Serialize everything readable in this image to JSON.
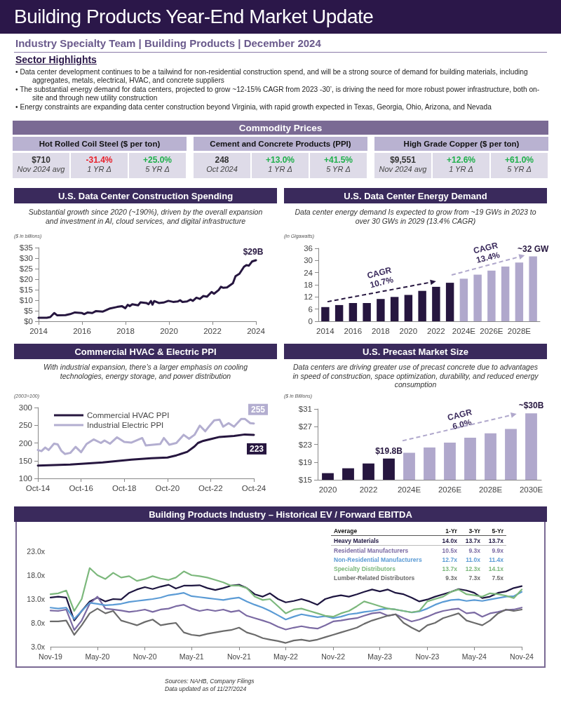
{
  "chart_data": [
    {
      "type": "other",
      "title": "Building Products Year-End Market Update",
      "subtitle": "Industry Specialty Team | Building Products | December 2024",
      "annotations": [
        "Sector Highlights",
        "• Data center development continues to be a tailwind for non-residential construction spend, and will be a strong source of demand for building materials, including aggregates, metals, electrical, HVAC, and concrete suppliers",
        "• The substantial energy demand for data centers, projected to grow ~12-15% CAGR from 2023 -30’, is driving the need for more robust power infrastructure, both on-site and through new utility construction",
        "• Energy constraints are expanding data center construction beyond Virginia, with rapid growth expected in Texas, Georgia, Ohio, Arizona, and Nevada"
      ]
    },
    {
      "type": "other",
      "title": "Commodity Prices",
      "annotations": [
        "Hot Rolled Coil Steel ($ per ton)",
        "$710",
        "Nov 2024 avg",
        "-31.4%",
        "1 YR Δ",
        "+25.0%",
        "5 YR Δ",
        "Cement and Concrete Products (PPI)",
        "248",
        "Oct 2024",
        "+13.0%",
        "1 YR Δ",
        "+41.5%",
        "5 YR Δ",
        "High Grade Copper ($ per ton)",
        "$9,551",
        "Nov 2024 avg",
        "+12.6%",
        "1 YR Δ",
        "+61.0%",
        "5 YR Δ"
      ],
      "colors": [
        "#333333",
        "#e8202a",
        "#1fb04b",
        "#333333",
        "#1fb04b",
        "#1fb04b",
        "#333333",
        "#1fb04b",
        "#1fb04b"
      ]
    },
    {
      "type": "line",
      "title": "U.S. Data Center Construction Spending",
      "subtitle": "Substantial growth since 2020 (~190%), driven by the overall expansion and investment in AI, cloud services, and digital infrastructure",
      "ylabel": "($ in billions)",
      "color": "#26163f",
      "marker": "none",
      "grid": false,
      "x": [
        2014,
        2014.38,
        2014.54,
        2014.72,
        2014.86,
        2015.24,
        2015.45,
        2015.67,
        2016,
        2016.1,
        2016.26,
        2016.47,
        2016.63,
        2016.96,
        2017.29,
        2017.61,
        2017.83,
        2017.99,
        2018.1,
        2018.2,
        2018.31,
        2018.58,
        2018.69,
        2018.96,
        2019.06,
        2019.17,
        2019.24,
        2019.32,
        2019.53,
        2019.75,
        2019.97,
        2020.19,
        2020.4,
        2020.51,
        2020.62,
        2020.83,
        2020.99,
        2021.1,
        2021.26,
        2021.42,
        2021.58,
        2021.75,
        2021.96,
        2022.07,
        2022.28,
        2022.39,
        2022.5,
        2022.67,
        2022.94,
        2023.06,
        2023.24,
        2023.45,
        2023.56,
        2023.67,
        2023.82,
        2024
      ],
      "values": [
        1.7,
        1.7,
        2,
        3.9,
        2.8,
        2.9,
        3.4,
        4.2,
        3.9,
        3.4,
        4.2,
        3.9,
        4.8,
        4.6,
        6.1,
        6.8,
        7.2,
        6.2,
        7.8,
        7.2,
        8.1,
        7.6,
        9,
        8.7,
        8.1,
        9.6,
        7.9,
        9.6,
        8.7,
        8.9,
        9.7,
        9.2,
        9.4,
        10,
        9.2,
        9.4,
        10.3,
        9.7,
        11.2,
        10.6,
        12,
        11.7,
        13.9,
        13.1,
        14.8,
        16.4,
        15.9,
        16.1,
        18.1,
        21.4,
        22.6,
        25.9,
        26.7,
        26.4,
        28.4,
        29
      ],
      "xlim": [
        2014,
        2024
      ],
      "xticks": [
        2014,
        2016,
        2018,
        2020,
        2022,
        2024
      ],
      "ylim": [
        0,
        35
      ],
      "yticks": [
        {
          "value": 0,
          "label": "$0"
        },
        {
          "value": 5,
          "label": "$5"
        },
        {
          "value": 10,
          "label": "$10"
        },
        {
          "value": 15,
          "label": "$15"
        },
        {
          "value": 20,
          "label": "$20"
        },
        {
          "value": 25,
          "label": "$25"
        },
        {
          "value": 30,
          "label": "$30"
        },
        {
          "value": 35,
          "label": "$35"
        }
      ],
      "annotations": [
        {
          "text": "$29B",
          "x": 2024,
          "y": 29
        }
      ]
    },
    {
      "type": "bar",
      "title": "U.S. Data Center Energy Demand",
      "subtitle": "Data center energy demand Is expected to grow from ~19 GWs in 2023 to over 30 GWs in 2029 (13.4% CAGR)",
      "ylabel": "(in Gigawatts)",
      "grid": false,
      "categories": [
        "2014",
        null,
        "2016",
        null,
        "2018",
        null,
        "2020",
        null,
        "2022",
        null,
        "2024E",
        null,
        "2026E",
        null,
        "2028E",
        null
      ],
      "values": [
        7,
        8,
        9,
        9,
        11,
        12,
        13,
        15,
        17,
        19,
        21,
        23,
        25,
        27,
        29,
        32
      ],
      "colors": [
        "#26163f",
        "#26163f",
        "#26163f",
        "#26163f",
        "#26163f",
        "#26163f",
        "#26163f",
        "#26163f",
        "#26163f",
        "#26163f",
        "#b0a8cc",
        "#b0a8cc",
        "#b0a8cc",
        "#b0a8cc",
        "#b0a8cc",
        "#b0a8cc"
      ],
      "value_labels": [
        null,
        null,
        null,
        null,
        null,
        null,
        null,
        null,
        null,
        null,
        null,
        null,
        null,
        null,
        null,
        "~32 GW"
      ],
      "ylim": [
        0,
        36
      ],
      "yticks": [
        0,
        6,
        12,
        18,
        24,
        30,
        36
      ],
      "annotations": [
        "CAGR\n10.7%",
        "CAGR\n13.4%"
      ]
    },
    {
      "type": "line",
      "title": "Commercial HVAC & Electric PPI",
      "subtitle": "With industrial expansion, there’s a larger emphasis on cooling technologies, energy storage, and power distribution",
      "ylabel": "(2003=100)",
      "marker": "none",
      "grid": false,
      "legend": "top left",
      "series": [
        {
          "name": "Commercial HVAC PPI",
          "color": "#26163f",
          "x": [
            "2014-10",
            "2016-04",
            "2017-10",
            "2018-06",
            "2019-02",
            "2020-01",
            "2020-10",
            "2021-03",
            "2021-09",
            "2022-01",
            "2022-03",
            "2022-06",
            "2022-10",
            "2023-03",
            "2023-11",
            "2024-05",
            "2024-10"
          ],
          "values": [
            136,
            139,
            145,
            149,
            153,
            157,
            159,
            165,
            175,
            190,
            200,
            206,
            211,
            217,
            220,
            224,
            223
          ]
        },
        {
          "name": "Industrial Electric PPI",
          "color": "#b3aed0",
          "x": [
            "2014-10",
            "2014-12",
            "2015-02",
            "2015-04",
            "2015-07",
            "2015-09",
            "2015-11",
            "2016-01",
            "2016-04",
            "2016-07",
            "2016-10",
            "2017-01",
            "2017-05",
            "2017-09",
            "2017-11",
            "2018-02",
            "2018-06",
            "2018-10",
            "2019-02",
            "2019-08",
            "2019-10",
            "2020-02",
            "2020-06",
            "2020-08",
            "2020-11",
            "2021-03",
            "2021-07",
            "2021-10",
            "2022-01",
            "2022-04",
            "2022-07",
            "2022-09",
            "2022-12",
            "2023-03",
            "2023-05",
            "2023-08",
            "2023-11",
            "2024-03",
            "2024-05",
            "2024-08",
            "2024-10"
          ],
          "values": [
            180,
            177,
            187,
            180,
            198,
            196,
            178,
            169,
            172,
            189,
            174,
            197,
            210,
            200,
            207,
            198,
            216,
            203,
            201,
            214,
            193,
            195,
            197,
            214,
            195,
            200,
            223,
            212,
            223,
            249,
            233,
            246,
            264,
            266,
            246,
            256,
            246,
            268,
            268,
            256,
            255
          ]
        }
      ],
      "xlim": [
        "2014-10",
        "2024-10"
      ],
      "xticks": [
        {
          "value": "2014-10",
          "label": "Oct-14"
        },
        {
          "value": "2016-10",
          "label": "Oct-16"
        },
        {
          "value": "2018-10",
          "label": "Oct-18"
        },
        {
          "value": "2020-10",
          "label": "Oct-20"
        },
        {
          "value": "2022-10",
          "label": "Oct-22"
        },
        {
          "value": "2024-10",
          "label": "Oct-24"
        }
      ],
      "ylim": [
        100,
        300
      ],
      "yticks": [
        100,
        150,
        200,
        250,
        300
      ],
      "annotations": [
        {
          "text": "255",
          "x": "2024-10",
          "y": 255
        },
        {
          "text": "223",
          "x": "2024-10",
          "y": 223
        }
      ]
    },
    {
      "type": "bar",
      "title": "U.S. Precast Market Size",
      "subtitle": "Data centers are driving greater use of precast concrete due to advantages in speed of construction, space optimization, durability, and reduced energy consumption",
      "ylabel": "($ in Billions)",
      "grid": false,
      "categories": [
        "2020",
        null,
        "2022",
        null,
        "2024E",
        null,
        "2026E",
        null,
        "2028E",
        null,
        "2030E"
      ],
      "values": [
        16.5,
        17.6,
        18.7,
        19.8,
        21.1,
        22.3,
        23.4,
        24.5,
        25.5,
        26.5,
        30
      ],
      "colors": [
        "#26163f",
        "#26163f",
        "#26163f",
        "#26163f",
        "#b0a8cc",
        "#b0a8cc",
        "#b0a8cc",
        "#b0a8cc",
        "#b0a8cc",
        "#b0a8cc",
        "#b0a8cc"
      ],
      "value_labels": [
        null,
        null,
        null,
        "$19.8B",
        null,
        null,
        null,
        null,
        null,
        null,
        "~$30B"
      ],
      "ylim": [
        15,
        31
      ],
      "yticks": [
        {
          "value": 15,
          "label": "$15"
        },
        {
          "value": 19,
          "label": "$19"
        },
        {
          "value": 23,
          "label": "$23"
        },
        {
          "value": 27,
          "label": "$27"
        },
        {
          "value": 31,
          "label": "$31"
        }
      ],
      "annotations": [
        "CAGR\n6.0%"
      ]
    },
    {
      "type": "line",
      "title": "Building Products Industry – Historical EV / Forward EBITDA",
      "marker": "none",
      "grid": false,
      "legend": "top right",
      "x": [
        "2019-11",
        "2019-12",
        "2020-01",
        "2020-02",
        "2020-03",
        "2020-04",
        "2020-05",
        "2020-06",
        "2020-07",
        "2020-08",
        "2020-09",
        "2020-10",
        "2020-11",
        "2020-12",
        "2021-01",
        "2021-02",
        "2021-03",
        "2021-04",
        "2021-05",
        "2021-06",
        "2021-07",
        "2021-08",
        "2021-09",
        "2021-10",
        "2021-11",
        "2021-12",
        "2022-01",
        "2022-02",
        "2022-03",
        "2022-04",
        "2022-05",
        "2022-06",
        "2022-07",
        "2022-08",
        "2022-09",
        "2022-10",
        "2022-11",
        "2022-12",
        "2023-01",
        "2023-02",
        "2023-03",
        "2023-04",
        "2023-05",
        "2023-06",
        "2023-07",
        "2023-08",
        "2023-09",
        "2023-10",
        "2023-11",
        "2023-12",
        "2024-01",
        "2024-02",
        "2024-03",
        "2024-04",
        "2024-05",
        "2024-06",
        "2024-07",
        "2024-08",
        "2024-09",
        "2024-10",
        "2024-11"
      ],
      "series": [
        {
          "name": "Heavy Materials",
          "color": "#1e1640",
          "values": [
            13.3,
            13.5,
            13.3,
            8.5,
            10.5,
            12.5,
            13.3,
            12.5,
            13.0,
            12.9,
            14.3,
            15.0,
            15.5,
            15.1,
            15.6,
            16.0,
            15.2,
            15.8,
            15.8,
            15.9,
            15.3,
            14.9,
            15.3,
            15.8,
            16.0,
            15.3,
            14.0,
            13.5,
            14.2,
            13.0,
            12.3,
            12.6,
            13.0,
            12.5,
            11.8,
            13.0,
            13.5,
            13.8,
            13.5,
            14.0,
            14.5,
            15.0,
            14.6,
            15.0,
            14.3,
            14.0,
            13.3,
            12.5,
            12.9,
            13.5,
            14.0,
            14.5,
            15.1,
            14.8,
            14.3,
            13.2,
            13.5,
            14.3,
            14.6,
            15.3,
            15.7
          ]
        },
        {
          "name": "Residential Manufacturers",
          "color": "#7b6aa3",
          "values": [
            10.6,
            10.5,
            10.8,
            6.5,
            8.5,
            12.0,
            13.5,
            11.0,
            10.8,
            10.6,
            10.3,
            10.5,
            10.8,
            10.3,
            10.8,
            11.0,
            11.5,
            11.8,
            11.0,
            10.5,
            10.8,
            10.5,
            10.8,
            10.3,
            10.6,
            9.5,
            9.0,
            8.5,
            8.0,
            7.2,
            6.6,
            7.0,
            7.3,
            7.0,
            6.8,
            7.5,
            8.3,
            8.5,
            8.8,
            9.0,
            9.5,
            10.0,
            10.2,
            9.5,
            9.8,
            9.0,
            8.3,
            8.7,
            9.3,
            10.0,
            10.5,
            10.8,
            11.0,
            10.0,
            10.2,
            9.3,
            10.0,
            10.3,
            10.7,
            10.8,
            11.2
          ]
        },
        {
          "name": "Non-Residential Manufacturers",
          "color": "#5b9bd5",
          "values": [
            11.2,
            11.0,
            11.2,
            8.8,
            10.5,
            12.2,
            12.0,
            11.7,
            11.8,
            12.0,
            12.4,
            12.6,
            12.8,
            13.0,
            13.3,
            13.8,
            14.0,
            14.3,
            13.6,
            13.4,
            13.2,
            13.0,
            12.8,
            13.1,
            13.3,
            12.5,
            11.8,
            11.2,
            10.5,
            9.6,
            8.7,
            9.3,
            9.8,
            9.5,
            9.2,
            9.4,
            9.0,
            9.3,
            9.8,
            10.0,
            10.3,
            10.5,
            10.8,
            11.0,
            10.8,
            10.5,
            10.2,
            10.4,
            11.0,
            11.8,
            12.4,
            12.8,
            12.9,
            12.6,
            12.8,
            12.6,
            12.9,
            13.2,
            13.5,
            13.6,
            14.5
          ]
        },
        {
          "name": "Specialty Distributors",
          "color": "#7cb87c",
          "values": [
            14.0,
            14.2,
            14.8,
            10.5,
            13.0,
            19.5,
            18.0,
            17.2,
            18.5,
            17.5,
            17.8,
            16.8,
            17.2,
            17.8,
            17.3,
            17.0,
            17.5,
            18.8,
            18.0,
            17.8,
            17.5,
            17.0,
            16.5,
            15.8,
            15.8,
            15.3,
            13.5,
            12.8,
            13.0,
            11.5,
            10.0,
            10.8,
            11.0,
            10.5,
            10.0,
            9.5,
            9.3,
            10.0,
            10.5,
            11.5,
            12.5,
            12.0,
            11.5,
            11.0,
            10.8,
            10.5,
            10.2,
            10.5,
            12.5,
            13.0,
            13.5,
            14.5,
            15.0,
            14.0,
            13.8,
            13.5,
            14.2,
            14.0,
            13.7,
            13.2,
            15.0
          ]
        },
        {
          "name": "Lumber-Related Distributors",
          "color": "#6b6b6b",
          "values": [
            8.3,
            8.3,
            8.5,
            5.5,
            7.5,
            10.0,
            11.0,
            10.0,
            10.5,
            8.5,
            8.0,
            7.5,
            8.2,
            8.7,
            7.5,
            7.8,
            8.0,
            6.0,
            5.5,
            5.3,
            5.7,
            6.0,
            6.3,
            6.5,
            7.0,
            6.0,
            5.5,
            4.8,
            4.5,
            4.2,
            3.8,
            4.3,
            4.5,
            4.2,
            4.5,
            5.0,
            5.5,
            6.0,
            6.5,
            7.0,
            7.8,
            8.5,
            9.0,
            9.5,
            9.8,
            8.0,
            7.0,
            6.2,
            7.5,
            8.0,
            9.0,
            9.5,
            10.0,
            8.5,
            8.0,
            7.5,
            8.5,
            10.0,
            10.8,
            10.5,
            10.8
          ]
        }
      ],
      "xlim": [
        "2019-11",
        "2024-11"
      ],
      "xticks": [
        {
          "value": "2019-11",
          "label": "Nov-19"
        },
        {
          "value": "2020-05",
          "label": "May-20"
        },
        {
          "value": "2020-11",
          "label": "Nov-20"
        },
        {
          "value": "2021-05",
          "label": "May-21"
        },
        {
          "value": "2021-11",
          "label": "Nov-21"
        },
        {
          "value": "2022-05",
          "label": "May-22"
        },
        {
          "value": "2022-11",
          "label": "Nov-22"
        },
        {
          "value": "2023-05",
          "label": "May-23"
        },
        {
          "value": "2023-11",
          "label": "Nov-23"
        },
        {
          "value": "2024-05",
          "label": "May-24"
        },
        {
          "value": "2024-11",
          "label": "Nov-24"
        }
      ],
      "ylim": [
        3,
        23
      ],
      "yticks": [
        {
          "value": 3,
          "label": "3.0x"
        },
        {
          "value": 8,
          "label": "8.0x"
        },
        {
          "value": 13,
          "label": "13.0x"
        },
        {
          "value": 18,
          "label": "18.0x"
        },
        {
          "value": 23,
          "label": "23.0x"
        }
      ],
      "annotations": [
        "Average",
        "1-Yr",
        "3-Yr",
        "5-Yr",
        "14.0x",
        "13.7x",
        "13.7x",
        "10.5x",
        "9.3x",
        "9.9x",
        "12.7x",
        "11.0x",
        "11.4x",
        "13.7x",
        "12.3x",
        "14.1x",
        "9.3x",
        "7.3x",
        "7.5x"
      ]
    },
    {
      "type": "other",
      "annotations": [
        "Sources: NAHB, Company Filings",
        "Data updated as of 11/27/2024"
      ]
    }
  ]
}
